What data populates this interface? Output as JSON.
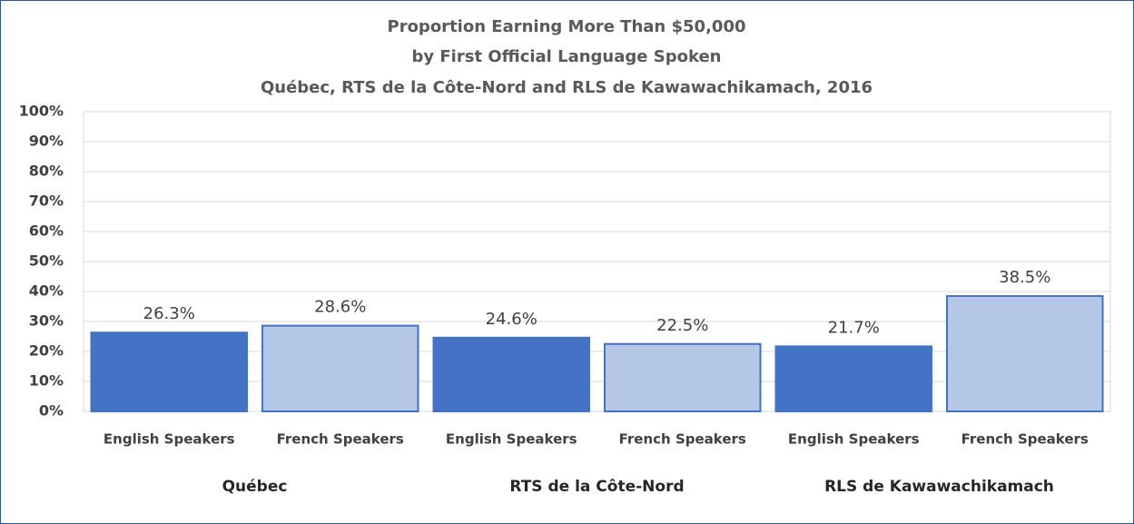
{
  "chart_data": {
    "type": "bar",
    "title": [
      "Proportion Earning More Than $50,000",
      "by First Official Language Spoken",
      "Québec, RTS de la Côte-Nord and RLS de Kawawachikamach, 2016"
    ],
    "categories": [
      "English Speakers",
      "French Speakers",
      "English Speakers",
      "French Speakers",
      "English Speakers",
      "French Speakers"
    ],
    "groups": [
      "Québec",
      "RTS de la Côte-Nord",
      "RLS de Kawawachikamach"
    ],
    "values": [
      26.3,
      28.6,
      24.6,
      22.5,
      21.7,
      38.5
    ],
    "value_labels": [
      "26.3%",
      "28.6%",
      "24.6%",
      "22.5%",
      "21.7%",
      "38.5%"
    ],
    "colors": [
      "#4472c4",
      "#b4c7e7",
      "#4472c4",
      "#b4c7e7",
      "#4472c4",
      "#b4c7e7"
    ],
    "ylim": [
      0,
      100
    ],
    "yticks": [
      {
        "value": 0,
        "label": "0%"
      },
      {
        "value": 10,
        "label": "10%"
      },
      {
        "value": 20,
        "label": "20%"
      },
      {
        "value": 30,
        "label": "30%"
      },
      {
        "value": 40,
        "label": "40%"
      },
      {
        "value": 50,
        "label": "50%"
      },
      {
        "value": 60,
        "label": "60%"
      },
      {
        "value": 70,
        "label": "70%"
      },
      {
        "value": 80,
        "label": "80%"
      },
      {
        "value": 90,
        "label": "90%"
      },
      {
        "value": 100,
        "label": "100%"
      }
    ],
    "grid": true
  }
}
